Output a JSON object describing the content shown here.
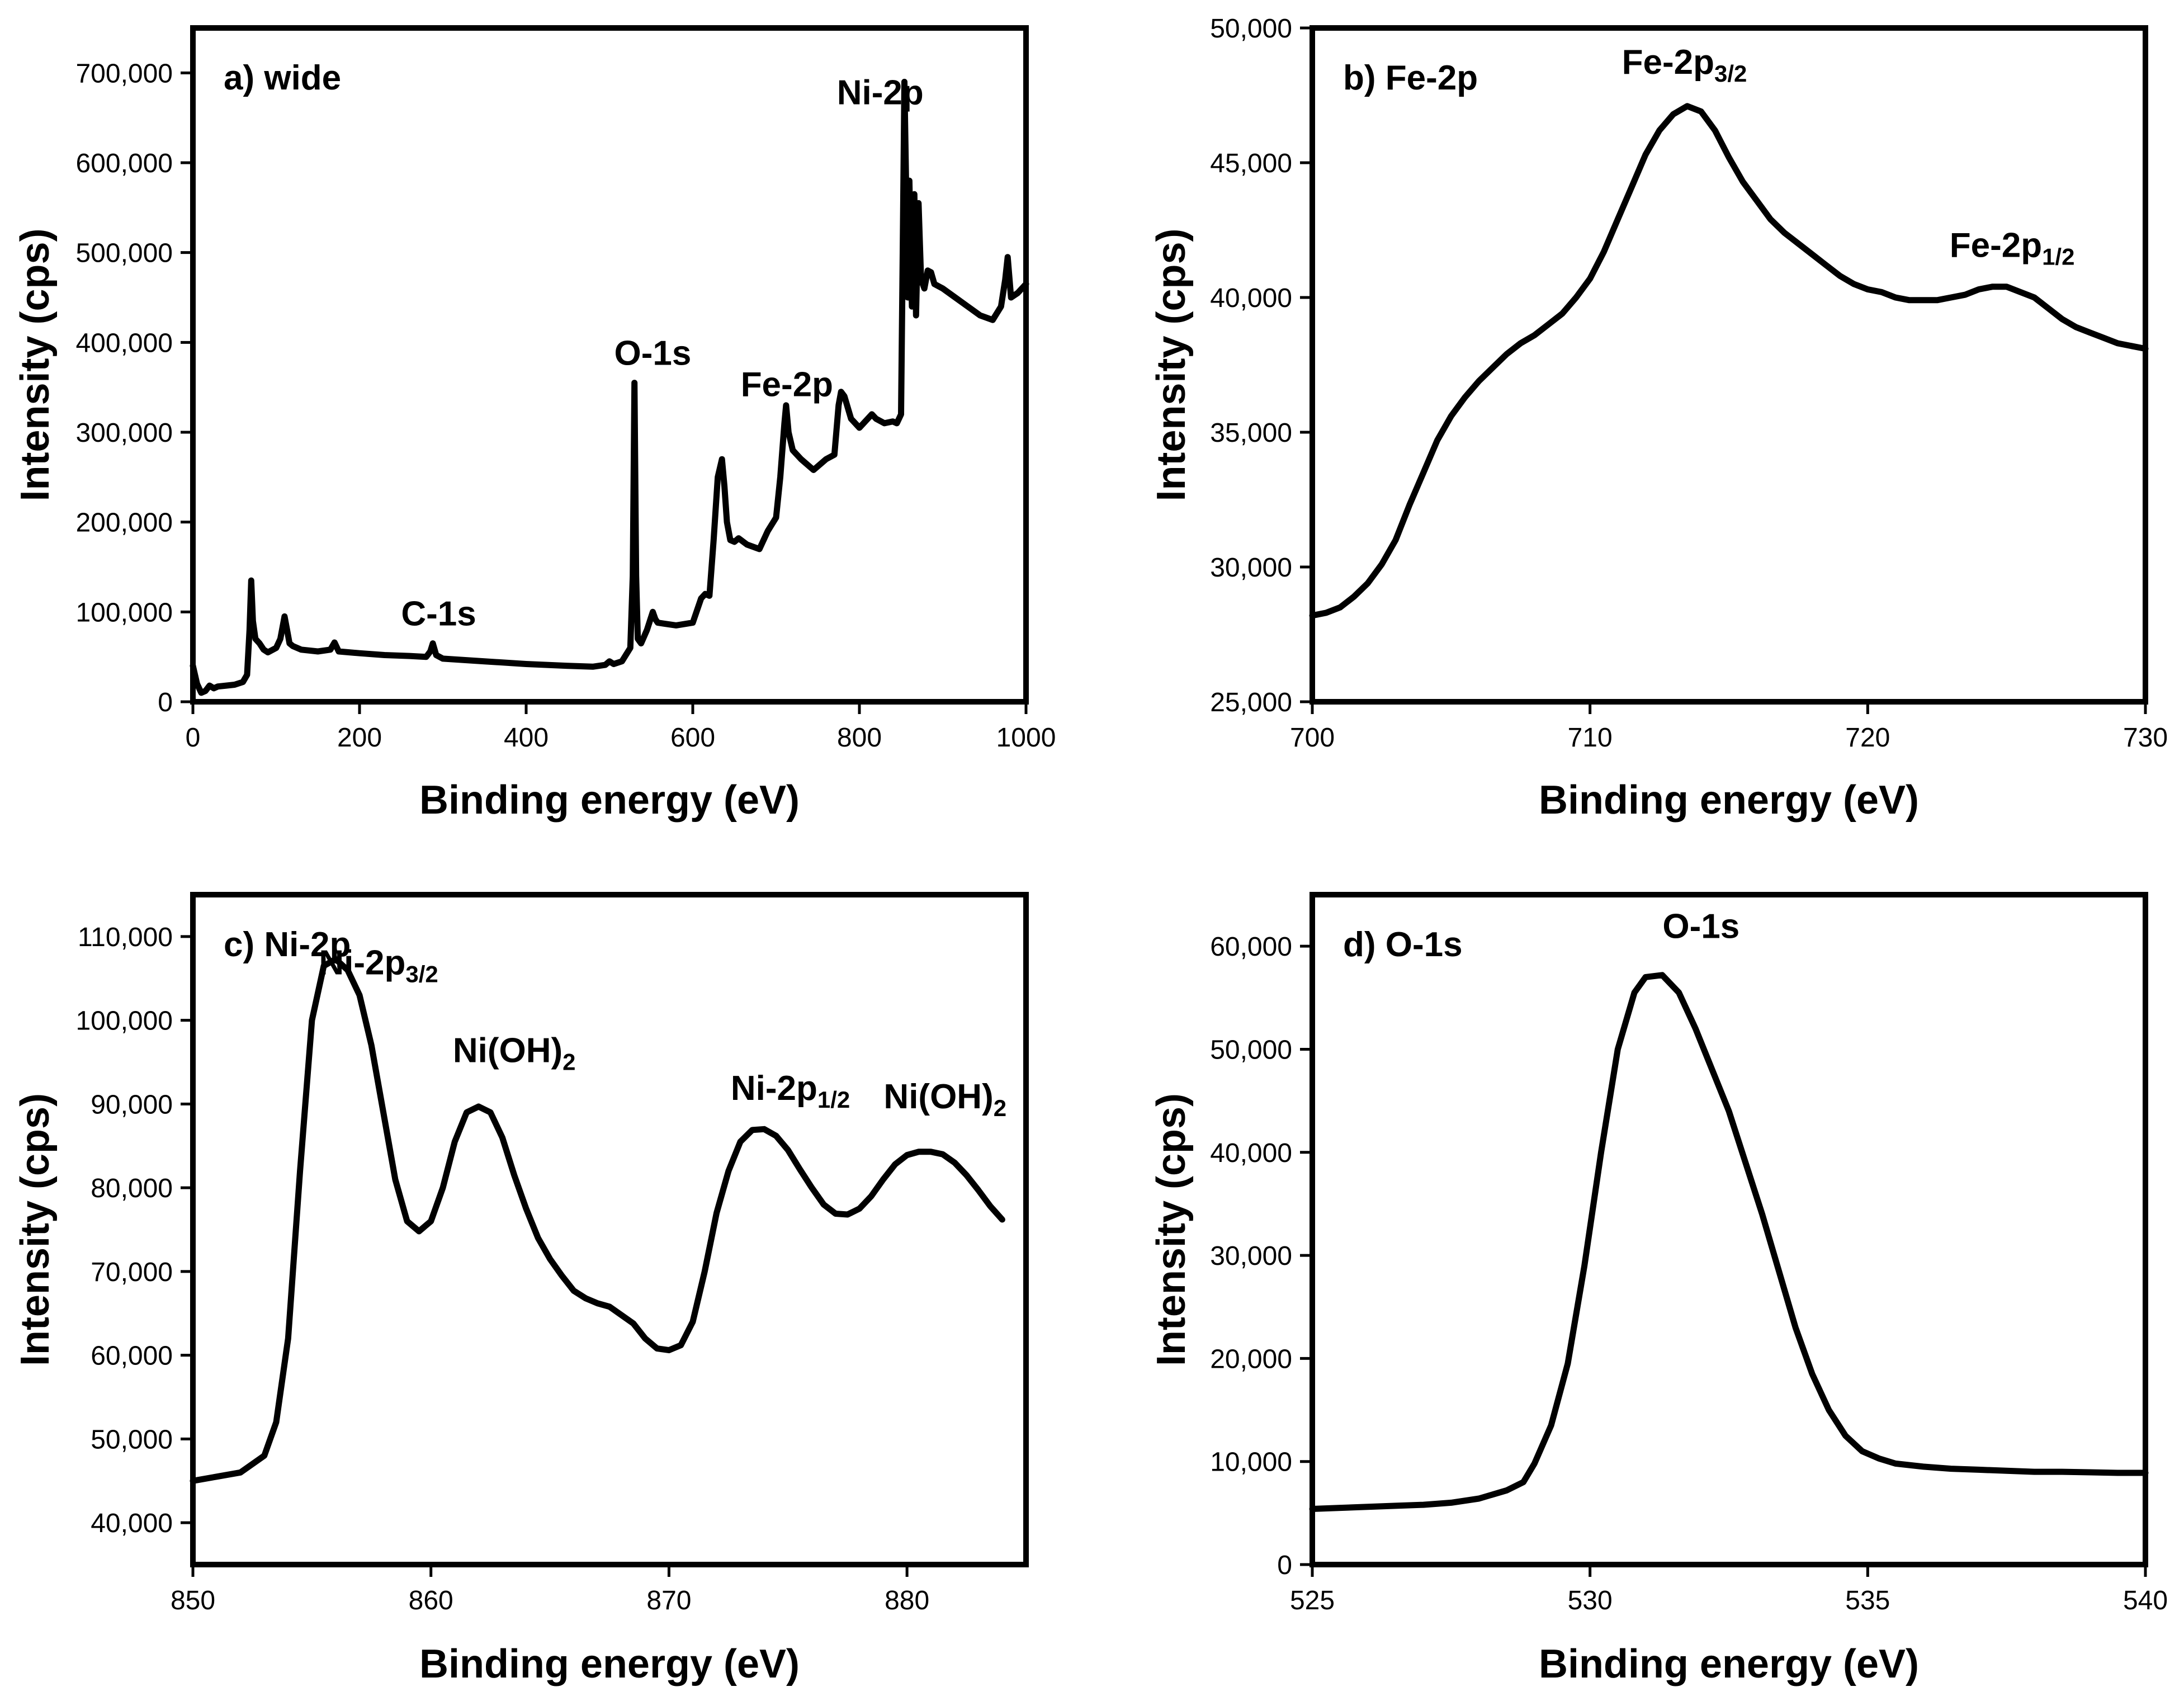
{
  "colors": {
    "line": "#000000",
    "background": "#ffffff"
  },
  "chart_data": [
    {
      "type": "line",
      "title": "a) wide",
      "xlabel": "Binding energy (eV)",
      "ylabel": "Intensity (cps)",
      "xlim": [
        0,
        1000
      ],
      "ylim": [
        0,
        750000
      ],
      "xticks": [
        0,
        200,
        400,
        600,
        800,
        1000
      ],
      "xtick_labels": [
        "0",
        "200",
        "400",
        "600",
        "800",
        "1000"
      ],
      "yticks": [
        0,
        100000,
        200000,
        300000,
        400000,
        500000,
        600000,
        700000
      ],
      "ytick_labels": [
        "0",
        "100,000",
        "200,000",
        "300,000",
        "400,000",
        "500,000",
        "600,000",
        "700,000"
      ],
      "annotations": [
        {
          "text": "C-1s",
          "sub": "",
          "x": 295,
          "y": 85000
        },
        {
          "text": "O-1s",
          "sub": "",
          "x": 552,
          "y": 375000
        },
        {
          "text": "Fe-2p",
          "sub": "",
          "x": 713,
          "y": 340000
        },
        {
          "text": "Ni-2p",
          "sub": "",
          "x": 825,
          "y": 665000
        }
      ],
      "x": [
        0,
        5,
        10,
        15,
        20,
        25,
        30,
        40,
        50,
        60,
        65,
        68,
        70,
        72,
        75,
        80,
        85,
        90,
        100,
        105,
        110,
        113,
        116,
        120,
        130,
        150,
        165,
        170,
        175,
        200,
        230,
        260,
        280,
        285,
        288,
        292,
        300,
        350,
        400,
        450,
        480,
        495,
        500,
        505,
        515,
        525,
        528,
        530,
        532,
        534,
        538,
        545,
        552,
        555,
        558,
        565,
        580,
        600,
        610,
        615,
        620,
        625,
        630,
        635,
        638,
        641,
        645,
        650,
        655,
        665,
        680,
        690,
        700,
        705,
        710,
        712,
        715,
        720,
        730,
        745,
        760,
        770,
        775,
        778,
        782,
        790,
        800,
        810,
        815,
        820,
        830,
        840,
        845,
        850,
        852,
        854,
        856,
        858,
        860,
        863,
        866,
        868,
        871,
        874,
        878,
        882,
        886,
        890,
        900,
        915,
        930,
        945,
        960,
        970,
        975,
        978,
        982,
        990,
        1000
      ],
      "y": [
        40000,
        20000,
        10000,
        12000,
        18000,
        15000,
        17000,
        18000,
        19000,
        22000,
        30000,
        80000,
        135000,
        90000,
        70000,
        65000,
        58000,
        55000,
        60000,
        70000,
        95000,
        80000,
        65000,
        62000,
        58000,
        56000,
        58000,
        66000,
        56000,
        54000,
        52000,
        51000,
        50000,
        56000,
        65000,
        52000,
        48000,
        45000,
        42000,
        40000,
        39000,
        41000,
        45000,
        42000,
        45000,
        60000,
        140000,
        355000,
        140000,
        70000,
        65000,
        80000,
        100000,
        92000,
        88000,
        87000,
        85000,
        88000,
        115000,
        120000,
        118000,
        180000,
        250000,
        270000,
        240000,
        200000,
        180000,
        178000,
        182000,
        175000,
        170000,
        190000,
        205000,
        250000,
        310000,
        330000,
        300000,
        280000,
        270000,
        258000,
        270000,
        275000,
        330000,
        345000,
        340000,
        315000,
        305000,
        315000,
        320000,
        315000,
        310000,
        312000,
        310000,
        320000,
        500000,
        690000,
        580000,
        450000,
        580000,
        440000,
        565000,
        430000,
        555000,
        470000,
        460000,
        480000,
        478000,
        465000,
        460000,
        450000,
        440000,
        430000,
        425000,
        440000,
        470000,
        495000,
        450000,
        455000,
        465000
      ]
    },
    {
      "type": "line",
      "title": "b) Fe-2p",
      "xlabel": "Binding energy (eV)",
      "ylabel": "Intensity (cps)",
      "xlim": [
        700,
        730
      ],
      "ylim": [
        25000,
        50000
      ],
      "xticks": [
        700,
        710,
        720,
        730
      ],
      "xtick_labels": [
        "700",
        "710",
        "720",
        "730"
      ],
      "yticks": [
        25000,
        30000,
        35000,
        40000,
        45000,
        50000
      ],
      "ytick_labels": [
        "25,000",
        "30,000",
        "35,000",
        "40,000",
        "45,000",
        "50,000"
      ],
      "annotations": [
        {
          "text": "Fe-2p",
          "sub": "3/2",
          "x": 713.4,
          "y": 48300
        },
        {
          "text": "Fe-2p",
          "sub": "1/2",
          "x": 725.2,
          "y": 41500
        }
      ],
      "x": [
        700,
        700.5,
        701,
        701.5,
        702,
        702.5,
        703,
        703.5,
        704,
        704.5,
        705,
        705.5,
        706,
        706.5,
        707,
        707.5,
        708,
        708.5,
        709,
        709.5,
        710,
        710.5,
        711,
        711.5,
        712,
        712.5,
        713,
        713.5,
        714,
        714.5,
        715,
        715.5,
        716,
        716.5,
        717,
        717.5,
        718,
        718.5,
        719,
        719.5,
        720,
        720.5,
        721,
        721.5,
        722,
        722.5,
        723,
        723.5,
        724,
        724.5,
        725,
        725.5,
        726,
        726.5,
        727,
        727.5,
        728,
        728.5,
        729,
        729.5,
        730
      ],
      "y": [
        28200,
        28300,
        28500,
        28900,
        29400,
        30100,
        31000,
        32300,
        33500,
        34700,
        35600,
        36300,
        36900,
        37400,
        37900,
        38300,
        38600,
        39000,
        39400,
        40000,
        40700,
        41700,
        42900,
        44100,
        45300,
        46200,
        46800,
        47100,
        46900,
        46200,
        45200,
        44300,
        43600,
        42900,
        42400,
        42000,
        41600,
        41200,
        40800,
        40500,
        40300,
        40200,
        40000,
        39900,
        39900,
        39900,
        40000,
        40100,
        40300,
        40400,
        40400,
        40200,
        40000,
        39600,
        39200,
        38900,
        38700,
        38500,
        38300,
        38200,
        38100
      ]
    },
    {
      "type": "line",
      "title": "c) Ni-2p",
      "xlabel": "Binding energy (eV)",
      "ylabel": "Intensity (cps)",
      "xlim": [
        850,
        885
      ],
      "ylim": [
        35000,
        115000
      ],
      "xticks": [
        850,
        860,
        870,
        880
      ],
      "xtick_labels": [
        "850",
        "860",
        "870",
        "880"
      ],
      "yticks": [
        40000,
        50000,
        60000,
        70000,
        80000,
        90000,
        100000,
        110000
      ],
      "ytick_labels": [
        "40,000",
        "50,000",
        "60,000",
        "70,000",
        "80,000",
        "90,000",
        "100,000",
        "110,000"
      ],
      "annotations": [
        {
          "text": "Ni-2p",
          "sub": "3/2",
          "x": 857.8,
          "y": 105500
        },
        {
          "text": "Ni(OH)",
          "sub": "2",
          "x": 863.5,
          "y": 95000
        },
        {
          "text": "Ni-2p",
          "sub": "1/2",
          "x": 875.1,
          "y": 90500
        },
        {
          "text": "Ni(OH)",
          "sub": "2",
          "x": 881.6,
          "y": 89500
        }
      ],
      "x": [
        850,
        851,
        852,
        853,
        853.5,
        854,
        854.5,
        855,
        855.5,
        856,
        856.5,
        857,
        857.5,
        858,
        858.5,
        859,
        859.5,
        860,
        860.5,
        861,
        861.5,
        862,
        862.5,
        863,
        863.5,
        864,
        864.5,
        865,
        865.5,
        866,
        866.5,
        867,
        867.5,
        868,
        868.5,
        869,
        869.5,
        870,
        870.5,
        871,
        871.5,
        872,
        872.5,
        873,
        873.5,
        874,
        874.5,
        875,
        875.5,
        876,
        876.5,
        877,
        877.5,
        878,
        878.5,
        879,
        879.5,
        880,
        880.5,
        881,
        881.5,
        882,
        882.5,
        883,
        883.5,
        884
      ],
      "y": [
        45000,
        45500,
        46000,
        48000,
        52000,
        62000,
        82000,
        100000,
        106500,
        107300,
        106000,
        103000,
        97000,
        89000,
        81000,
        76000,
        74800,
        76000,
        80000,
        85500,
        89000,
        89700,
        89000,
        86000,
        81500,
        77500,
        74000,
        71500,
        69500,
        67700,
        66800,
        66200,
        65800,
        64800,
        63800,
        62000,
        60800,
        60600,
        61200,
        64000,
        70000,
        77000,
        82000,
        85500,
        86900,
        87000,
        86200,
        84500,
        82200,
        80000,
        78000,
        76900,
        76800,
        77500,
        79000,
        81000,
        82800,
        83900,
        84300,
        84300,
        84000,
        83000,
        81500,
        79700,
        77800,
        76200
      ]
    },
    {
      "type": "line",
      "title": "d) O-1s",
      "xlabel": "Binding energy (eV)",
      "ylabel": "Intensity (cps)",
      "xlim": [
        525,
        540
      ],
      "ylim": [
        0,
        65000
      ],
      "xticks": [
        525,
        530,
        535,
        540
      ],
      "xtick_labels": [
        "525",
        "530",
        "535",
        "540"
      ],
      "yticks": [
        0,
        10000,
        20000,
        30000,
        40000,
        50000,
        60000
      ],
      "ytick_labels": [
        "0",
        "10,000",
        "20,000",
        "30,000",
        "40,000",
        "50,000",
        "60,000"
      ],
      "annotations": [
        {
          "text": "O-1s",
          "sub": "",
          "x": 532,
          "y": 60800
        }
      ],
      "x": [
        525,
        525.5,
        526,
        526.5,
        527,
        527.5,
        528,
        528.5,
        528.8,
        529,
        529.3,
        529.6,
        529.9,
        530.2,
        530.5,
        530.8,
        531,
        531.3,
        531.6,
        531.9,
        532.2,
        532.5,
        532.8,
        533.1,
        533.4,
        533.7,
        534,
        534.3,
        534.6,
        534.9,
        535.2,
        535.5,
        536,
        536.5,
        537,
        537.5,
        538,
        538.5,
        539,
        539.5,
        540
      ],
      "y": [
        5400,
        5500,
        5600,
        5700,
        5800,
        6000,
        6400,
        7200,
        8000,
        9800,
        13500,
        19500,
        29000,
        40000,
        50000,
        55500,
        57000,
        57200,
        55500,
        52000,
        48000,
        44000,
        39000,
        34000,
        28500,
        23000,
        18500,
        15000,
        12500,
        11000,
        10300,
        9800,
        9500,
        9300,
        9200,
        9100,
        9000,
        9000,
        8950,
        8900,
        8900
      ]
    }
  ]
}
